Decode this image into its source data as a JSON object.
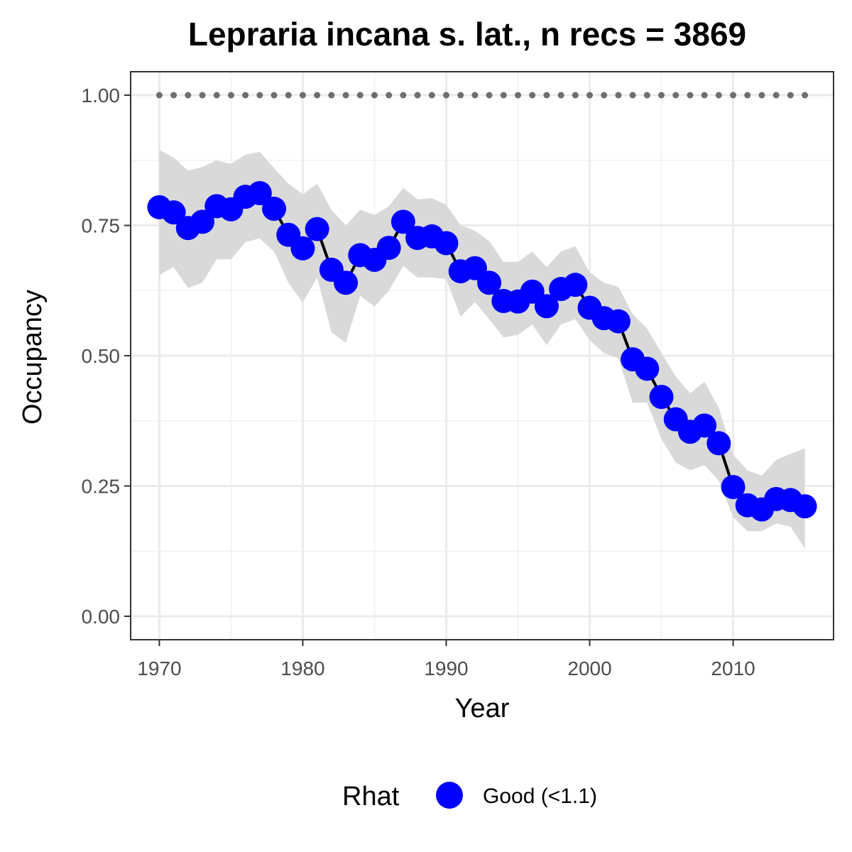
{
  "chart_data": {
    "type": "line",
    "title": "Lepraria incana s. lat., n recs = 3869",
    "xlabel": "Year",
    "ylabel": "Occupancy",
    "xlim": [
      1968,
      2017
    ],
    "ylim": [
      -0.045,
      1.045
    ],
    "x_ticks": [
      1970,
      1980,
      1990,
      2000,
      2010
    ],
    "x_tick_labels": [
      "1970",
      "1980",
      "1990",
      "2000",
      "2010"
    ],
    "y_ticks": [
      0,
      0.25,
      0.5,
      0.75,
      1
    ],
    "y_tick_labels": [
      "0.00",
      "0.25",
      "0.50",
      "0.75",
      "1.00"
    ],
    "grid": true,
    "legend": {
      "position": "bottom",
      "title": "Rhat",
      "entries": [
        {
          "label": "Good (<1.1)",
          "color": "#0000ff"
        }
      ]
    },
    "colors": {
      "points": "#0000ff",
      "line": "#000000",
      "ribbon": "#d9d9d9",
      "reference_dots": "#6e6e6e"
    },
    "reference_line": {
      "y": 1.0,
      "style": "dotted"
    },
    "x": [
      1970,
      1971,
      1972,
      1973,
      1974,
      1975,
      1976,
      1977,
      1978,
      1979,
      1980,
      1981,
      1982,
      1983,
      1984,
      1985,
      1986,
      1987,
      1988,
      1989,
      1990,
      1991,
      1992,
      1993,
      1994,
      1995,
      1996,
      1997,
      1998,
      1999,
      2000,
      2001,
      2002,
      2003,
      2004,
      2005,
      2006,
      2007,
      2008,
      2009,
      2010,
      2011,
      2012,
      2013,
      2014,
      2015
    ],
    "series": [
      {
        "name": "Good (<1.1)",
        "values": [
          0.785,
          0.775,
          0.745,
          0.757,
          0.787,
          0.781,
          0.805,
          0.812,
          0.782,
          0.732,
          0.706,
          0.743,
          0.665,
          0.64,
          0.693,
          0.684,
          0.707,
          0.757,
          0.726,
          0.729,
          0.716,
          0.662,
          0.668,
          0.64,
          0.605,
          0.604,
          0.623,
          0.595,
          0.628,
          0.636,
          0.592,
          0.572,
          0.566,
          0.493,
          0.475,
          0.421,
          0.378,
          0.354,
          0.366,
          0.332,
          0.248,
          0.213,
          0.205,
          0.225,
          0.223,
          0.211
        ],
        "lower": [
          0.655,
          0.67,
          0.63,
          0.64,
          0.685,
          0.685,
          0.718,
          0.725,
          0.7,
          0.64,
          0.602,
          0.65,
          0.545,
          0.525,
          0.615,
          0.594,
          0.625,
          0.672,
          0.65,
          0.65,
          0.647,
          0.575,
          0.603,
          0.57,
          0.535,
          0.54,
          0.56,
          0.52,
          0.56,
          0.57,
          0.53,
          0.505,
          0.495,
          0.41,
          0.41,
          0.34,
          0.295,
          0.28,
          0.29,
          0.26,
          0.19,
          0.163,
          0.163,
          0.178,
          0.172,
          0.13
        ],
        "upper": [
          0.895,
          0.88,
          0.855,
          0.862,
          0.875,
          0.868,
          0.886,
          0.891,
          0.86,
          0.83,
          0.81,
          0.83,
          0.78,
          0.75,
          0.78,
          0.77,
          0.787,
          0.822,
          0.8,
          0.802,
          0.79,
          0.75,
          0.74,
          0.72,
          0.68,
          0.68,
          0.7,
          0.67,
          0.7,
          0.71,
          0.66,
          0.64,
          0.632,
          0.58,
          0.552,
          0.505,
          0.46,
          0.428,
          0.45,
          0.4,
          0.31,
          0.28,
          0.27,
          0.3,
          0.312,
          0.322
        ]
      }
    ]
  }
}
